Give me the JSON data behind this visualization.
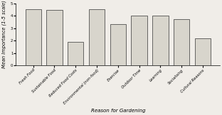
{
  "categories": [
    "Fresh Food",
    "Sustainable Food",
    "Reduced Food Costs",
    "Environmental (non-food)",
    "Exercise",
    "Outdoor Time",
    "Learning",
    "Socialising",
    "Cultural Reasons"
  ],
  "values": [
    4.5,
    4.45,
    1.9,
    4.5,
    3.3,
    4.0,
    4.0,
    3.75,
    2.15
  ],
  "bar_color": "#d8d5cc",
  "bar_edgecolor": "#333333",
  "xlabel": "Reason for Gardening",
  "ylabel": "Mean Importance (1-5 scale)",
  "ylim": [
    0,
    5
  ],
  "yticks": [
    0,
    1,
    2,
    3,
    4,
    5
  ],
  "xlabel_fontsize": 5.0,
  "ylabel_fontsize": 4.8,
  "tick_fontsize": 3.8,
  "bar_width": 0.75
}
